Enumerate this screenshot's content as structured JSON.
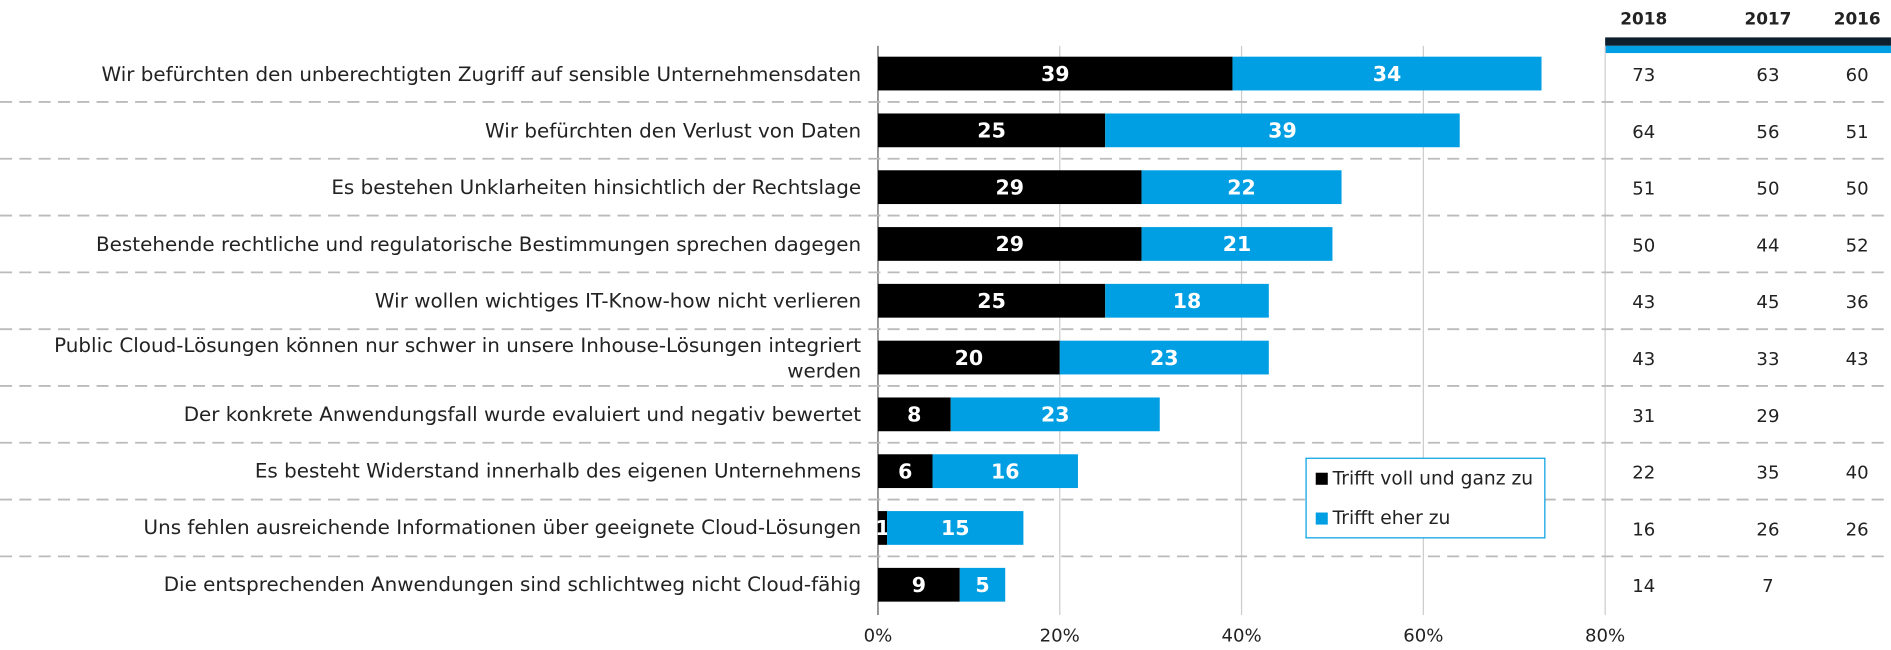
{
  "chart_data": {
    "type": "stacked-barh",
    "categories": [
      "Wir befürchten den unberechtigten Zugriff auf sensible Unternehmensdaten",
      "Wir befürchten den Verlust von Daten",
      "Es bestehen Unklarheiten hinsichtlich der Rechtslage",
      "Bestehende rechtliche und regulatorische Bestimmungen sprechen dagegen",
      "Wir wollen wichtiges IT-Know-how nicht verlieren",
      "Public Cloud-Lösungen können nur schwer in unsere Inhouse-Lösungen integriert werden",
      "Der konkrete Anwendungsfall wurde evaluiert und negativ bewertet",
      "Es besteht Widerstand innerhalb des eigenen Unternehmens",
      "Uns fehlen ausreichende Informationen über geeignete Cloud-Lösungen",
      "Die entsprechenden Anwendungen sind schlichtweg nicht Cloud-fähig"
    ],
    "series": [
      {
        "name": "Trifft voll und ganz zu",
        "color": "#000000",
        "values": [
          39,
          25,
          29,
          29,
          25,
          20,
          8,
          6,
          1,
          9
        ]
      },
      {
        "name": "Trifft eher zu",
        "color": "#009fe3",
        "values": [
          34,
          39,
          22,
          21,
          18,
          23,
          23,
          16,
          15,
          5
        ]
      }
    ],
    "xlim": [
      0,
      80
    ],
    "xticks": [
      {
        "value": 0,
        "label": "0%"
      },
      {
        "value": 20,
        "label": "20%"
      },
      {
        "value": 40,
        "label": "40%"
      },
      {
        "value": 60,
        "label": "60%"
      },
      {
        "value": 80,
        "label": "80%"
      }
    ],
    "grid": true,
    "table_columns": [
      "2018",
      "2017",
      "2016"
    ],
    "table_values": [
      [
        73,
        63,
        60
      ],
      [
        64,
        56,
        51
      ],
      [
        51,
        50,
        50
      ],
      [
        50,
        44,
        52
      ],
      [
        43,
        45,
        36
      ],
      [
        43,
        33,
        43
      ],
      [
        31,
        29,
        null
      ],
      [
        22,
        35,
        40
      ],
      [
        16,
        26,
        26
      ],
      [
        14,
        7,
        null
      ]
    ]
  }
}
